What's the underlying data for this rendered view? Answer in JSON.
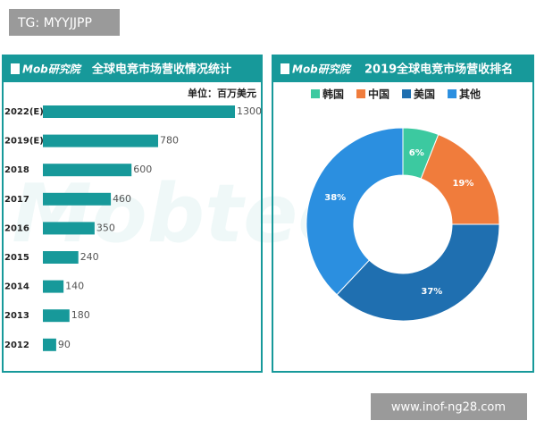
{
  "tag": "TG: MYYJJPP",
  "footer_url": "www.inof-ng28.com",
  "brand": "Mob研究院",
  "background_watermark": "Mobtec",
  "chart_data": [
    {
      "type": "hbar",
      "title": "全球电竞市场营收情况统计",
      "unit_label": "单位：百万美元",
      "categories": [
        "2022(E)",
        "2019(E)",
        "2018",
        "2017",
        "2016",
        "2015",
        "2014",
        "2013",
        "2012"
      ],
      "values": [
        1300,
        780,
        600,
        460,
        350,
        240,
        140,
        180,
        90
      ],
      "color": "#17999a"
    },
    {
      "type": "donut",
      "title": "2019全球电竞市场营收排名",
      "categories": [
        "韩国",
        "中国",
        "美国",
        "其他"
      ],
      "values": [
        6,
        19,
        37,
        38
      ],
      "value_labels": [
        "6%",
        "19%",
        "37%",
        "38%"
      ],
      "colors": [
        "#3cc9a0",
        "#f07c3c",
        "#1f6fb0",
        "#2b8fe0"
      ]
    }
  ]
}
